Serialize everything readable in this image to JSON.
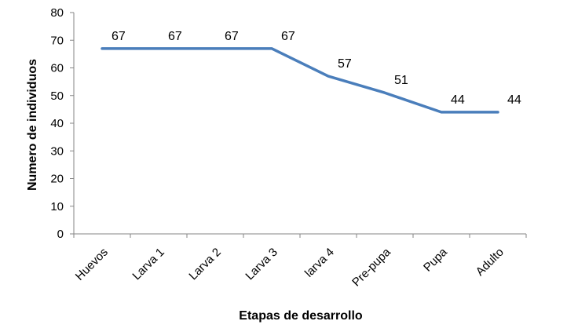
{
  "chart_data": {
    "type": "line",
    "categories": [
      "Huevos",
      "Larva 1",
      "Larva 2",
      "Larva 3",
      "larva 4",
      "Pre-pupa",
      "Pupa",
      "Adulto"
    ],
    "series": [
      {
        "values": [
          67,
          67,
          67,
          67,
          57,
          51,
          44,
          44
        ],
        "color": "#4a7ebb"
      }
    ],
    "data_labels": [
      "67",
      "67",
      "67",
      "67",
      "57",
      "51",
      "44",
      "44"
    ],
    "xlabel": "Etapas de desarrollo",
    "ylabel": "Numero de individuos",
    "ylim": [
      0,
      80
    ],
    "yticks": [
      "0",
      "10",
      "20",
      "30",
      "40",
      "50",
      "60",
      "70",
      "80"
    ],
    "grid": false,
    "legend": "none"
  }
}
